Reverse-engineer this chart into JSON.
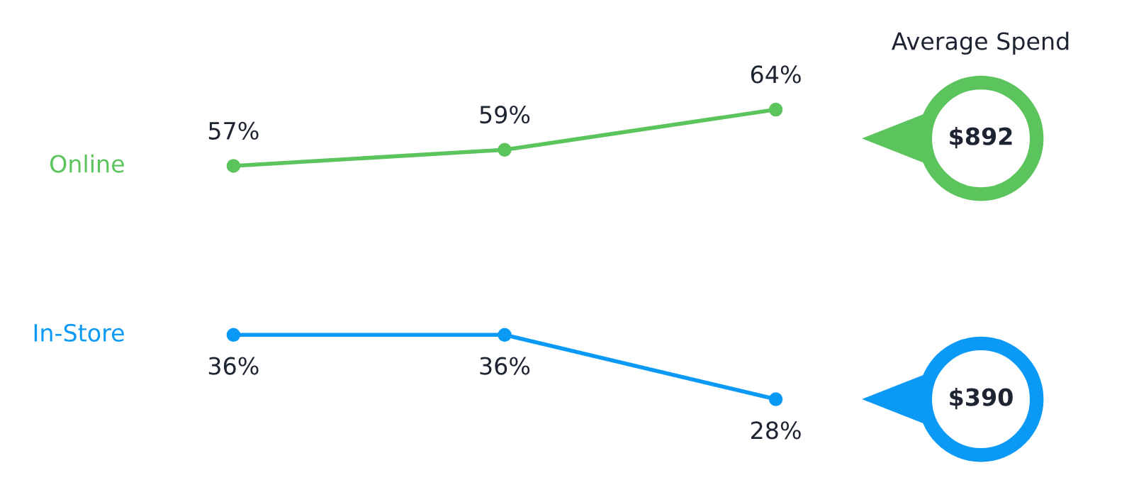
{
  "chart_data": {
    "type": "line",
    "categories": [
      null,
      null,
      null
    ],
    "series": [
      {
        "name": "Online",
        "color": "#5cc45c",
        "values": [
          57,
          59,
          64
        ],
        "value_labels": [
          "57%",
          "59%",
          "64%"
        ]
      },
      {
        "name": "In-Store",
        "color": "#0a9af5",
        "values": [
          36,
          36,
          28
        ],
        "value_labels": [
          "36%",
          "36%",
          "28%"
        ]
      }
    ],
    "marker": "circle",
    "line_style": "solid",
    "annotations": [
      "Average Spend",
      "$892",
      "$390"
    ]
  }
}
